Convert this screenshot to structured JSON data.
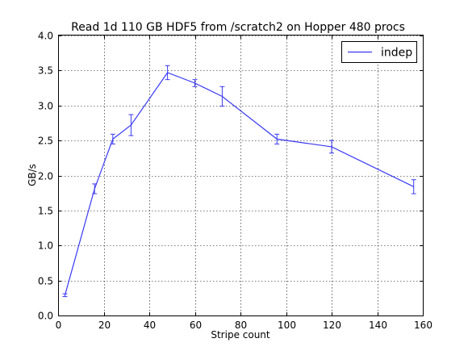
{
  "chart_data": {
    "type": "line",
    "title": "Read 1d 110 GB HDF5 from /scratch2 on Hopper 480 procs",
    "xlabel": "Stripe count",
    "ylabel": "GB/s",
    "xlim": [
      0,
      160
    ],
    "ylim": [
      0.0,
      4.0
    ],
    "xticks": [
      0,
      20,
      40,
      60,
      80,
      100,
      120,
      140,
      160
    ],
    "xtick_labels": [
      "0",
      "20",
      "40",
      "60",
      "80",
      "100",
      "120",
      "140",
      "160"
    ],
    "yticks": [
      0.0,
      0.5,
      1.0,
      1.5,
      2.0,
      2.5,
      3.0,
      3.5,
      4.0
    ],
    "ytick_labels": [
      "0.0",
      "0.5",
      "1.0",
      "1.5",
      "2.0",
      "2.5",
      "3.0",
      "3.5",
      "4.0"
    ],
    "grid": true,
    "legend_position": "top-right",
    "series": [
      {
        "name": "indep",
        "color": "#3a3af5",
        "x": [
          3,
          16,
          24,
          32,
          48,
          60,
          72,
          96,
          120,
          156
        ],
        "y": [
          0.29,
          1.81,
          2.52,
          2.72,
          3.47,
          3.32,
          3.13,
          2.52,
          2.41,
          1.84
        ],
        "error": [
          0.02,
          0.07,
          0.07,
          0.15,
          0.1,
          0.05,
          0.14,
          0.07,
          0.09,
          0.1
        ]
      }
    ]
  }
}
